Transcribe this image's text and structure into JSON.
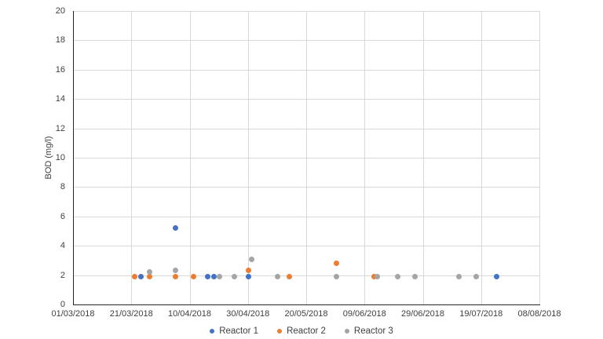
{
  "colors": {
    "background": "#FFFFFF",
    "gridline": "#D9D9D9",
    "axis_line": "#262626",
    "axis_text": "#3F3F3F",
    "reactor1_blue": "#4472C4",
    "reactor2_orange": "#ED7D31",
    "reactor3_gray": "#A5A5A5"
  },
  "chart_data": {
    "type": "scatter",
    "title": "",
    "xlabel": "",
    "ylabel": "BOD (mg/l)",
    "ylim": [
      0,
      20
    ],
    "y_tick_step": 2,
    "grid": true,
    "legend_position": "bottom-center",
    "x_axis": {
      "start": "01/03/2018",
      "end": "08/08/2018",
      "tick_interval_days": 20,
      "tick_labels": [
        "01/03/2018",
        "21/03/2018",
        "10/04/2018",
        "30/04/2018",
        "20/05/2018",
        "09/06/2018",
        "29/06/2018",
        "19/07/2018",
        "08/08/2018"
      ]
    },
    "series": [
      {
        "name": "Reactor 1",
        "color": "#4472C4",
        "points": [
          {
            "date": "24/03/2018",
            "value": 1.9
          },
          {
            "date": "05/04/2018",
            "value": 5.2
          },
          {
            "date": "16/04/2018",
            "value": 1.9
          },
          {
            "date": "18/04/2018",
            "value": 1.9
          },
          {
            "date": "30/04/2018",
            "value": 1.9
          },
          {
            "date": "24/07/2018",
            "value": 1.9
          }
        ]
      },
      {
        "name": "Reactor 2",
        "color": "#ED7D31",
        "points": [
          {
            "date": "22/03/2018",
            "value": 1.9
          },
          {
            "date": "27/03/2018",
            "value": 1.9
          },
          {
            "date": "05/04/2018",
            "value": 1.9
          },
          {
            "date": "11/04/2018",
            "value": 1.9
          },
          {
            "date": "30/04/2018",
            "value": 2.3
          },
          {
            "date": "14/05/2018",
            "value": 1.9
          },
          {
            "date": "30/05/2018",
            "value": 2.8
          },
          {
            "date": "12/06/2018",
            "value": 1.9
          }
        ]
      },
      {
        "name": "Reactor 3",
        "color": "#A5A5A5",
        "points": [
          {
            "date": "27/03/2018",
            "value": 2.2
          },
          {
            "date": "05/04/2018",
            "value": 2.3
          },
          {
            "date": "20/04/2018",
            "value": 1.9
          },
          {
            "date": "25/04/2018",
            "value": 1.9
          },
          {
            "date": "01/05/2018",
            "value": 3.1
          },
          {
            "date": "10/05/2018",
            "value": 1.9
          },
          {
            "date": "30/05/2018",
            "value": 1.9
          },
          {
            "date": "13/06/2018",
            "value": 1.9
          },
          {
            "date": "20/06/2018",
            "value": 1.9
          },
          {
            "date": "26/06/2018",
            "value": 1.9
          },
          {
            "date": "11/07/2018",
            "value": 1.9
          },
          {
            "date": "17/07/2018",
            "value": 1.9
          }
        ]
      }
    ]
  }
}
